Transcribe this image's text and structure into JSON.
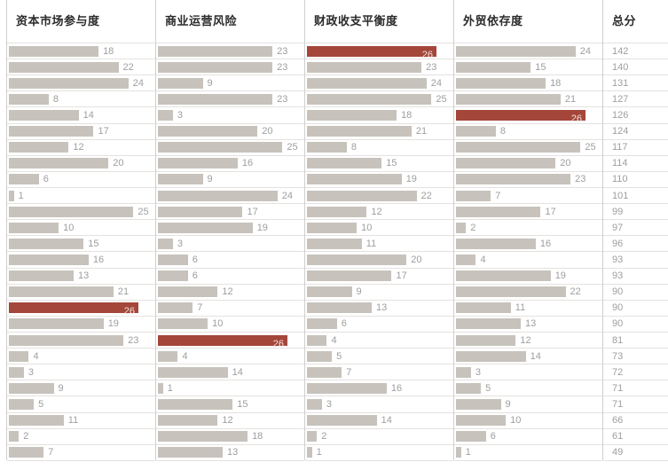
{
  "chart_data": {
    "type": "bar",
    "orientation": "horizontal",
    "max_value": 26,
    "highlight_value": 26,
    "grid": "horizontal row separators, vertical column dividers",
    "legend_position": "none",
    "columns": [
      {
        "label": "资本市场参与度",
        "values": [
          18,
          22,
          24,
          8,
          14,
          17,
          12,
          20,
          6,
          1,
          25,
          10,
          15,
          16,
          13,
          21,
          26,
          19,
          23,
          4,
          3,
          9,
          5,
          11,
          2,
          7
        ]
      },
      {
        "label": "商业运营风险",
        "values": [
          23,
          23,
          9,
          23,
          3,
          20,
          25,
          16,
          9,
          24,
          17,
          19,
          3,
          6,
          6,
          12,
          7,
          10,
          26,
          4,
          14,
          1,
          15,
          12,
          18,
          13
        ]
      },
      {
        "label": "财政收支平衡度",
        "values": [
          26,
          23,
          24,
          25,
          18,
          21,
          8,
          15,
          19,
          22,
          12,
          10,
          11,
          20,
          17,
          9,
          13,
          6,
          4,
          5,
          7,
          16,
          3,
          14,
          2,
          1
        ]
      },
      {
        "label": "外贸依存度",
        "values": [
          24,
          15,
          18,
          21,
          26,
          8,
          25,
          20,
          23,
          7,
          17,
          2,
          16,
          4,
          19,
          22,
          11,
          13,
          12,
          14,
          3,
          5,
          9,
          10,
          6,
          1
        ]
      }
    ],
    "total_column": {
      "label": "总分",
      "values": [
        142,
        140,
        131,
        127,
        126,
        124,
        117,
        114,
        110,
        101,
        99,
        97,
        96,
        93,
        93,
        90,
        90,
        90,
        81,
        73,
        72,
        71,
        71,
        66,
        61,
        49
      ]
    },
    "colors": {
      "bar": "#c7c3bc",
      "highlight": "#a4463a",
      "value_text": "#9e9e9e",
      "highlight_text": "#f2e3e0",
      "divider": "#cfcfcf",
      "separator": "#e4e2df",
      "header_text": "#2b2b2b"
    }
  }
}
